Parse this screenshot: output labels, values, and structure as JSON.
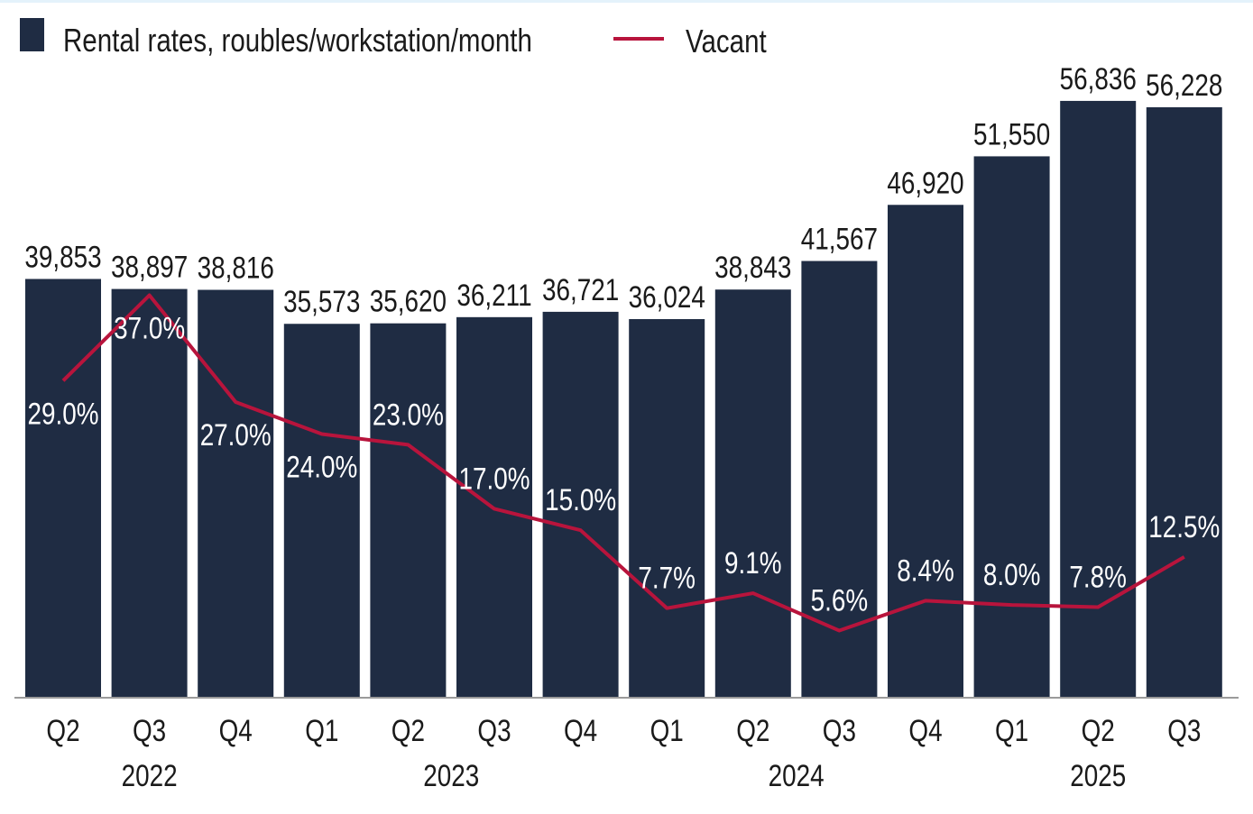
{
  "chart_data": {
    "type": "bar",
    "title": "",
    "legend": {
      "placement": "top-left",
      "entries": [
        {
          "name": "Rental rates, roubles/workstation/month",
          "kind": "bar"
        },
        {
          "name": "Vacant",
          "kind": "line"
        }
      ]
    },
    "categories": [
      "Q2",
      "Q3",
      "Q4",
      "Q1",
      "Q2",
      "Q3",
      "Q4",
      "Q1",
      "Q2",
      "Q3",
      "Q4",
      "Q1",
      "Q2",
      "Q3"
    ],
    "years": [
      {
        "label": "2022",
        "from": 0,
        "to": 2
      },
      {
        "label": "2023",
        "from": 3,
        "to": 6
      },
      {
        "label": "2024",
        "from": 7,
        "to": 10
      },
      {
        "label": "2025",
        "from": 11,
        "to": 13
      }
    ],
    "series": [
      {
        "name": "Rental rates, roubles/workstation/month",
        "type": "bar",
        "axis": "primary",
        "values": [
          39853,
          38897,
          38816,
          35573,
          35620,
          36211,
          36721,
          36024,
          38843,
          41567,
          46920,
          51550,
          56836,
          56228
        ],
        "labels": [
          "39,853",
          "38,897",
          "38,816",
          "35,573",
          "35,620",
          "36,211",
          "36,721",
          "36,024",
          "38,843",
          "41,567",
          "46,920",
          "51,550",
          "56,836",
          "56,228"
        ]
      },
      {
        "name": "Vacant",
        "type": "line",
        "axis": "secondary",
        "values": [
          29.0,
          37.0,
          27.0,
          24.0,
          23.0,
          17.0,
          15.0,
          7.7,
          9.1,
          5.6,
          8.4,
          8.0,
          7.8,
          12.5
        ],
        "labels": [
          "29.0%",
          "37.0%",
          "27.0%",
          "24.0%",
          "23.0%",
          "17.0%",
          "15.0%",
          "7.7%",
          "9.1%",
          "5.6%",
          "8.4%",
          "8.0%",
          "7.8%",
          "12.5%"
        ]
      }
    ],
    "ylim": [
      0,
      65600
    ],
    "y2lim": [
      -0.6,
      63.8
    ],
    "grid": false,
    "colors": {
      "bar": "#1f2c43",
      "line": "#b8143c",
      "text": "#1a1a1a",
      "axis": "#9a9a9a"
    }
  }
}
